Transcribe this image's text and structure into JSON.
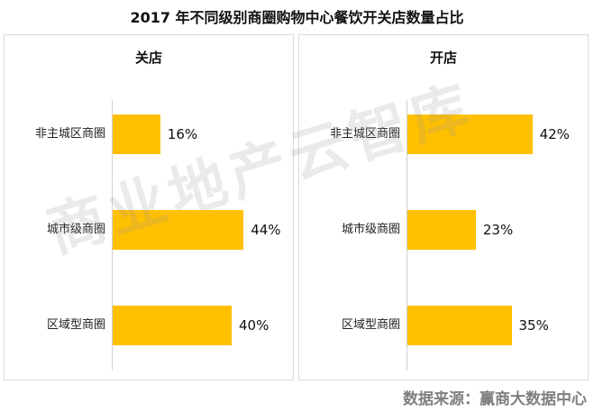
{
  "title": "2017 年不同级别商圈购物中心餐饮开关店数量占比",
  "watermark": "商业地产云智库",
  "source": "数据来源：赢商大数据中心",
  "colors": {
    "bar": "#ffc000"
  },
  "chart_data": [
    {
      "type": "bar",
      "orientation": "horizontal",
      "title": "关店",
      "categories": [
        "非主城区商圈",
        "城市级商圈",
        "区域型商圈"
      ],
      "values": [
        16,
        44,
        40
      ],
      "value_labels": [
        "16%",
        "44%",
        "40%"
      ],
      "unit": "%",
      "xlim": [
        0,
        50
      ],
      "grid": false,
      "legend": "none"
    },
    {
      "type": "bar",
      "orientation": "horizontal",
      "title": "开店",
      "categories": [
        "非主城区商圈",
        "城市级商圈",
        "区域型商圈"
      ],
      "values": [
        42,
        23,
        35
      ],
      "value_labels": [
        "42%",
        "23%",
        "35%"
      ],
      "unit": "%",
      "xlim": [
        0,
        50
      ],
      "grid": false,
      "legend": "none"
    }
  ]
}
